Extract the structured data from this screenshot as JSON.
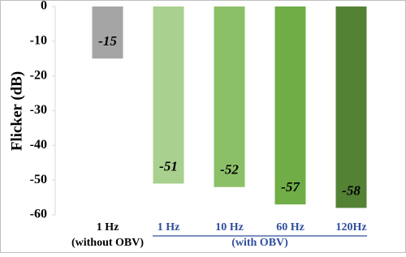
{
  "chart_data": {
    "type": "bar",
    "y_label": "Flicker (dB)",
    "categories": [
      "1 Hz",
      "1 Hz",
      "10 Hz",
      "60 Hz",
      "120Hz"
    ],
    "values": [
      -15,
      -51,
      -52,
      -57,
      -58
    ],
    "colors": [
      "#a5a5a5",
      "#a9d08e",
      "#8cc068",
      "#70ad47",
      "#548235"
    ],
    "groups": [
      {
        "label": "(without OBV)",
        "size": 1,
        "color": "#000000"
      },
      {
        "label": "(with OBV)",
        "size": 4,
        "color": "#2f4f9e"
      }
    ],
    "ylim": [
      -60,
      0
    ],
    "yticks": [
      0,
      -10,
      -20,
      -30,
      -40,
      -50,
      -60
    ]
  }
}
